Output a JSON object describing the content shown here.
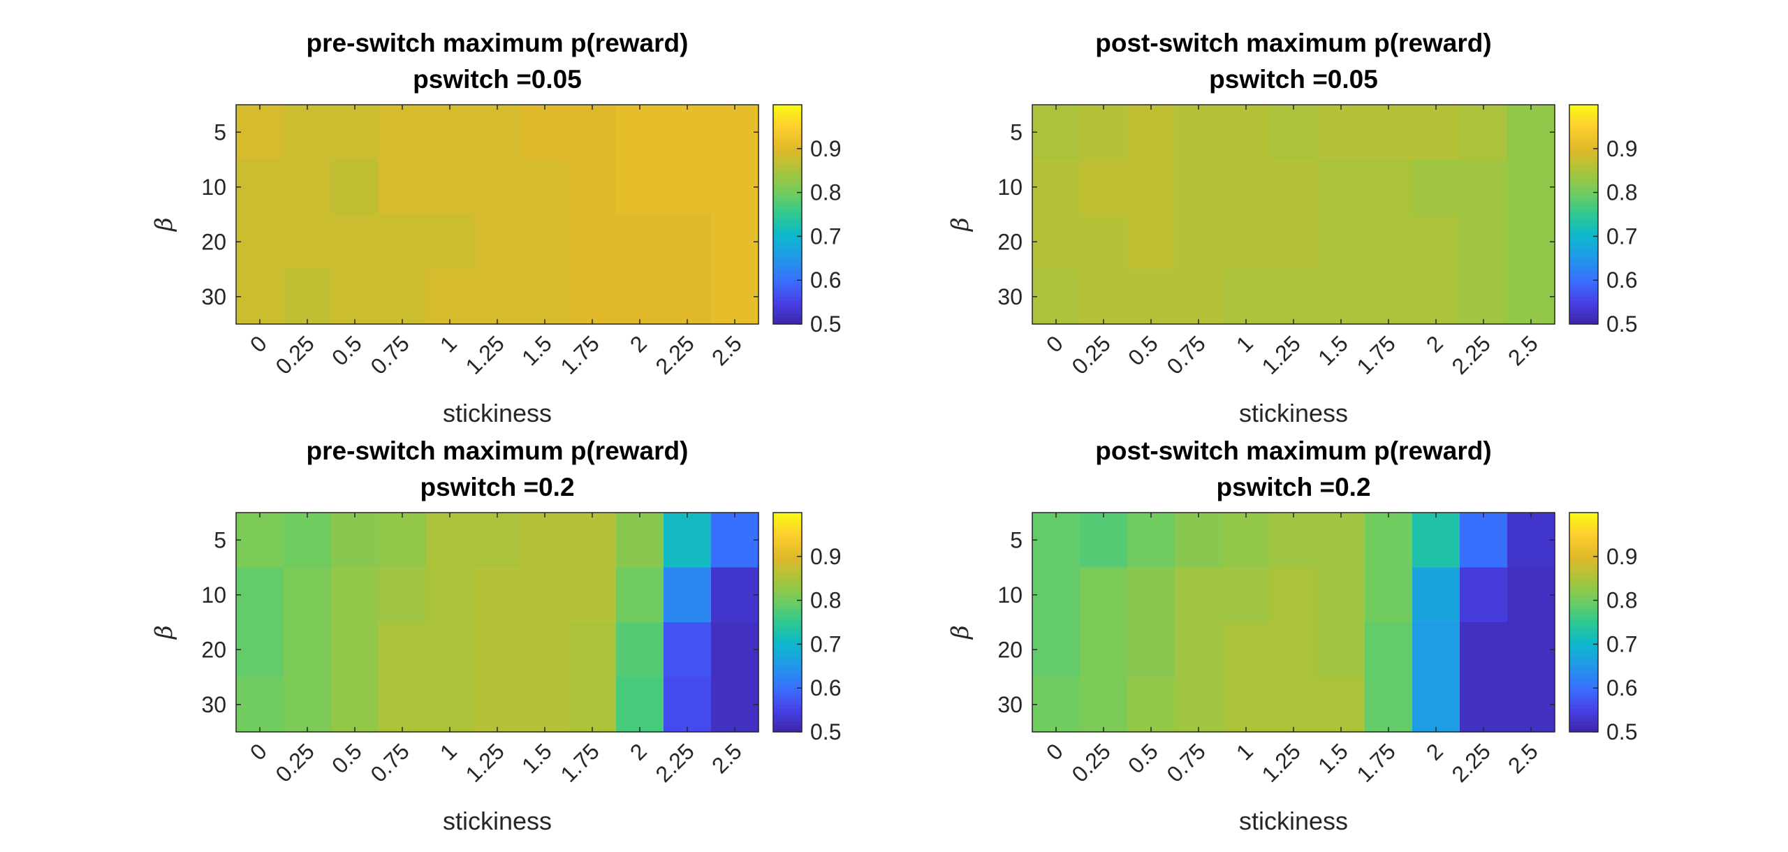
{
  "colormap": {
    "name": "parula",
    "clim": [
      0.5,
      1.0
    ],
    "ticks": [
      "0.5",
      "0.6",
      "0.7",
      "0.8",
      "0.9"
    ],
    "tick_values": [
      0.5,
      0.6,
      0.7,
      0.8,
      0.9
    ]
  },
  "chart_data": [
    {
      "type": "heatmap",
      "title_line1": "pre-switch maximum p(reward)",
      "title_line2": "pswitch =0.05",
      "xlabel": "stickiness",
      "ylabel": "β",
      "x_categories": [
        "0",
        "0.25",
        "0.5",
        "0.75",
        "1",
        "1.25",
        "1.5",
        "1.75",
        "2",
        "2.25",
        "2.5"
      ],
      "y_categories": [
        "5",
        "10",
        "20",
        "30"
      ],
      "values": [
        [
          0.89,
          0.88,
          0.88,
          0.89,
          0.89,
          0.89,
          0.9,
          0.9,
          0.91,
          0.91,
          0.91
        ],
        [
          0.88,
          0.88,
          0.87,
          0.89,
          0.89,
          0.89,
          0.89,
          0.9,
          0.91,
          0.91,
          0.91
        ],
        [
          0.88,
          0.88,
          0.88,
          0.88,
          0.88,
          0.89,
          0.89,
          0.9,
          0.9,
          0.9,
          0.91
        ],
        [
          0.88,
          0.87,
          0.88,
          0.88,
          0.89,
          0.89,
          0.89,
          0.9,
          0.9,
          0.9,
          0.91
        ]
      ]
    },
    {
      "type": "heatmap",
      "title_line1": "post-switch maximum p(reward)",
      "title_line2": "pswitch =0.05",
      "xlabel": "stickiness",
      "ylabel": "β",
      "x_categories": [
        "0",
        "0.25",
        "0.5",
        "0.75",
        "1",
        "1.25",
        "1.5",
        "1.75",
        "2",
        "2.25",
        "2.5"
      ],
      "y_categories": [
        "5",
        "10",
        "20",
        "30"
      ],
      "values": [
        [
          0.85,
          0.86,
          0.87,
          0.86,
          0.86,
          0.85,
          0.86,
          0.86,
          0.86,
          0.85,
          0.83
        ],
        [
          0.86,
          0.87,
          0.87,
          0.86,
          0.86,
          0.86,
          0.85,
          0.85,
          0.84,
          0.84,
          0.83
        ],
        [
          0.86,
          0.86,
          0.87,
          0.86,
          0.86,
          0.86,
          0.85,
          0.85,
          0.85,
          0.84,
          0.83
        ],
        [
          0.85,
          0.86,
          0.86,
          0.86,
          0.85,
          0.85,
          0.85,
          0.85,
          0.85,
          0.84,
          0.83
        ]
      ]
    },
    {
      "type": "heatmap",
      "title_line1": "pre-switch maximum p(reward)",
      "title_line2": "pswitch =0.2",
      "xlabel": "stickiness",
      "ylabel": "β",
      "x_categories": [
        "0",
        "0.25",
        "0.5",
        "0.75",
        "1",
        "1.25",
        "1.5",
        "1.75",
        "2",
        "2.25",
        "2.5"
      ],
      "y_categories": [
        "5",
        "10",
        "20",
        "30"
      ],
      "values": [
        [
          0.81,
          0.8,
          0.82,
          0.83,
          0.85,
          0.85,
          0.86,
          0.86,
          0.82,
          0.71,
          0.6
        ],
        [
          0.79,
          0.81,
          0.83,
          0.84,
          0.85,
          0.86,
          0.86,
          0.86,
          0.8,
          0.63,
          0.53
        ],
        [
          0.79,
          0.81,
          0.83,
          0.85,
          0.85,
          0.86,
          0.86,
          0.85,
          0.78,
          0.57,
          0.52
        ],
        [
          0.8,
          0.81,
          0.83,
          0.85,
          0.85,
          0.86,
          0.86,
          0.85,
          0.77,
          0.56,
          0.52
        ]
      ]
    },
    {
      "type": "heatmap",
      "title_line1": "post-switch maximum p(reward)",
      "title_line2": "pswitch =0.2",
      "xlabel": "stickiness",
      "ylabel": "β",
      "x_categories": [
        "0",
        "0.25",
        "0.5",
        "0.75",
        "1",
        "1.25",
        "1.5",
        "1.75",
        "2",
        "2.25",
        "2.5"
      ],
      "y_categories": [
        "5",
        "10",
        "20",
        "30"
      ],
      "values": [
        [
          0.79,
          0.78,
          0.8,
          0.82,
          0.83,
          0.84,
          0.84,
          0.8,
          0.73,
          0.6,
          0.53
        ],
        [
          0.79,
          0.81,
          0.82,
          0.84,
          0.84,
          0.85,
          0.84,
          0.8,
          0.67,
          0.54,
          0.52
        ],
        [
          0.79,
          0.81,
          0.82,
          0.84,
          0.85,
          0.85,
          0.84,
          0.79,
          0.66,
          0.52,
          0.52
        ],
        [
          0.8,
          0.81,
          0.83,
          0.84,
          0.85,
          0.85,
          0.85,
          0.79,
          0.66,
          0.52,
          0.52
        ]
      ]
    }
  ]
}
